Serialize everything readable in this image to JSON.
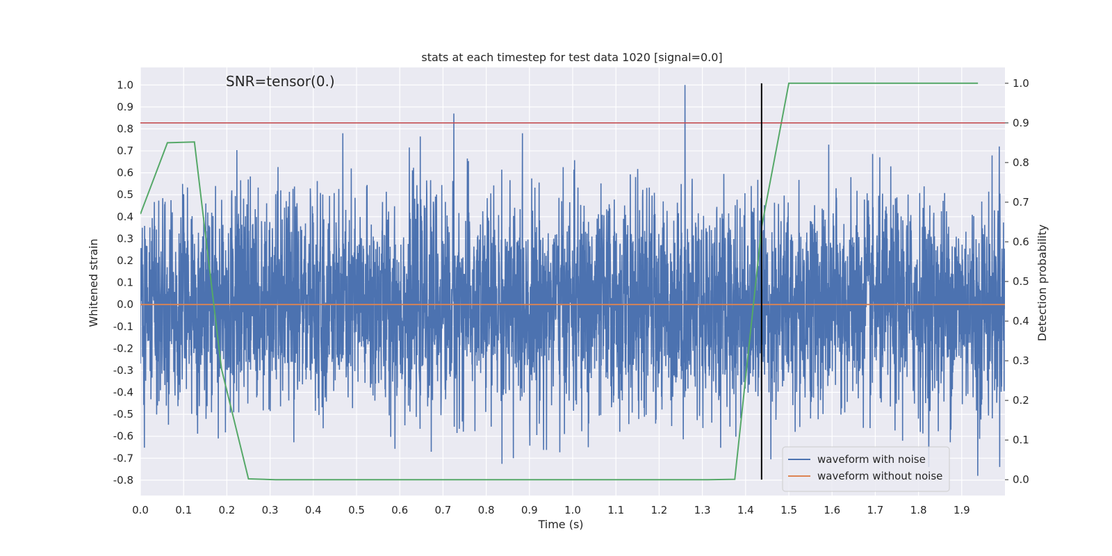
{
  "chart_data": {
    "type": "line",
    "title": "stats at each timestep for test data 1020 [signal=0.0]",
    "xlabel": "Time (s)",
    "ylabel": "Whitened strain",
    "y2label": "Detection probability",
    "annotation": "SNR=tensor(0.)",
    "xlim": [
      0.0,
      2.0
    ],
    "ylim": [
      -0.87,
      1.08
    ],
    "y2lim": [
      -0.04,
      1.04
    ],
    "xticks": [
      "0.0",
      "0.1",
      "0.2",
      "0.3",
      "0.4",
      "0.5",
      "0.6",
      "0.7",
      "0.8",
      "0.9",
      "1.0",
      "1.1",
      "1.2",
      "1.3",
      "1.4",
      "1.5",
      "1.6",
      "1.7",
      "1.8",
      "1.9"
    ],
    "yticks": [
      "1.0",
      "0.9",
      "0.8",
      "0.7",
      "0.6",
      "0.5",
      "0.4",
      "0.3",
      "0.2",
      "0.1",
      "0.0",
      "-0.1",
      "-0.2",
      "-0.3",
      "-0.4",
      "-0.5",
      "-0.6",
      "-0.7",
      "-0.8"
    ],
    "y2ticks": [
      "1.0",
      "0.9",
      "0.8",
      "0.7",
      "0.6",
      "0.5",
      "0.4",
      "0.3",
      "0.2",
      "0.1",
      "0.0"
    ],
    "grid": true,
    "legend_position": "lower-right",
    "series": [
      {
        "name": "waveform with noise",
        "color": "#4c72b0",
        "axis": "left",
        "sample_rate_hz": 2048,
        "duration_s": 2.0,
        "amplitude_std": 0.24,
        "peaks": [
          {
            "x": 0.725,
            "y": 0.87
          },
          {
            "x": 0.863,
            "y": -0.7
          },
          {
            "x": 1.26,
            "y": 1.0
          },
          {
            "x": 1.036,
            "y": -0.65
          },
          {
            "x": 1.937,
            "y": -0.78
          },
          {
            "x": 1.987,
            "y": 0.72
          }
        ],
        "note": "dense noise trace"
      },
      {
        "name": "waveform without noise",
        "color": "#dd8452",
        "axis": "left",
        "x": [
          0.0,
          2.0
        ],
        "y": [
          0.0,
          0.0
        ]
      },
      {
        "name": "",
        "color": "#55a868",
        "axis": "right",
        "x": [
          0.0,
          0.0625,
          0.125,
          0.1875,
          0.25,
          0.3125,
          0.375,
          0.4375,
          0.5,
          0.5625,
          0.625,
          0.6875,
          0.75,
          0.8125,
          0.875,
          0.9375,
          1.0,
          1.0625,
          1.125,
          1.1875,
          1.25,
          1.3125,
          1.375,
          1.4375,
          1.5,
          1.5625,
          1.625,
          1.6875,
          1.75,
          1.8125,
          1.875,
          1.9375
        ],
        "y": [
          0.67,
          0.85,
          0.852,
          0.28,
          0.002,
          0.0,
          0.0,
          0.0,
          0.0,
          0.0,
          0.0,
          0.0,
          0.0,
          0.0,
          0.0,
          0.0,
          0.0,
          0.0,
          0.0,
          0.0,
          0.0,
          0.0,
          0.001,
          0.64,
          1.0,
          1.0,
          1.0,
          1.0,
          1.0,
          1.0,
          1.0,
          1.0
        ]
      }
    ],
    "hlines": [
      {
        "axis": "right",
        "y": 0.9,
        "color": "#c44e52"
      }
    ],
    "vlines": [
      {
        "x": 1.437,
        "y_from": 0.0,
        "y_to": 1.0,
        "axis": "right",
        "color": "#000000"
      }
    ]
  }
}
